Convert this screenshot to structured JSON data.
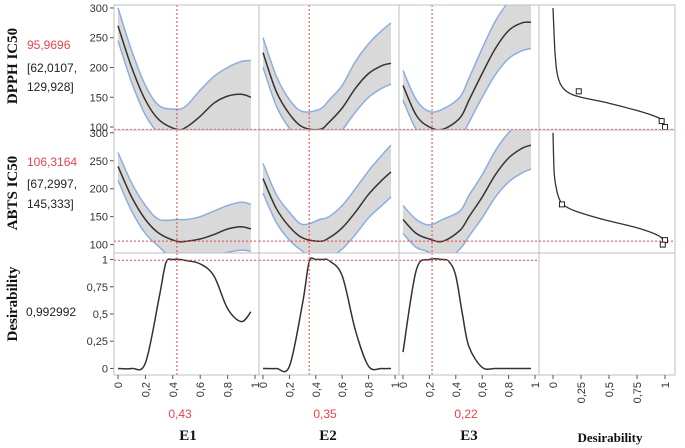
{
  "chart_data": {
    "type": "line",
    "title": "",
    "factors": [
      {
        "name": "E1",
        "current": "0,43",
        "value": 0.43
      },
      {
        "name": "E2",
        "current": "0,35",
        "value": 0.35
      },
      {
        "name": "E3",
        "current": "0,22",
        "value": 0.22
      }
    ],
    "x_ticks": [
      "0",
      "0,2",
      "0,4",
      "0,6",
      "0,8",
      "1"
    ],
    "desirability_axis": {
      "label": "Desirability",
      "ticks": [
        "0",
        "0,25",
        "0,5",
        "0,75",
        "1"
      ]
    },
    "responses": [
      {
        "name": "DPPH IC50",
        "predicted": "95,9696",
        "ci": [
          "[62,0107,",
          "129,928]"
        ],
        "predicted_value": 95.97,
        "ylim": [
          95,
          305
        ],
        "y_ticks": [
          100,
          150,
          200,
          250,
          300
        ],
        "x": [
          0,
          0.1,
          0.2,
          0.3,
          0.43,
          0.5,
          0.6,
          0.7,
          0.8,
          0.9,
          0.97
        ],
        "curves": {
          "E1": {
            "mean": [
              270,
              200,
              145,
              112,
              96,
              100,
              118,
              140,
              152,
              155,
              150
            ],
            "lower": [
              245,
              175,
              120,
              88,
              62,
              64,
              74,
              84,
              90,
              92,
              92
            ],
            "upper": [
              300,
              228,
              170,
              136,
              130,
              136,
              162,
              185,
              200,
              210,
              212
            ]
          },
          "E2": {
            "mean": [
              225,
              160,
              122,
              100,
              96,
              108,
              132,
              165,
              190,
              203,
              207
            ],
            "lower": [
              200,
              136,
              98,
              78,
              62,
              72,
              95,
              125,
              150,
              165,
              172
            ],
            "upper": [
              250,
              186,
              146,
              126,
              130,
              145,
              170,
              210,
              240,
              262,
              275
            ]
          },
          "E3": {
            "mean": [
              170,
              120,
              100,
              96,
              115,
              145,
              190,
              232,
              262,
              275,
              276
            ],
            "lower": [
              145,
              96,
              76,
              62,
              80,
              108,
              150,
              188,
              215,
              228,
              232
            ],
            "upper": [
              195,
              146,
              126,
              130,
              150,
              182,
              232,
              278,
              310,
              330,
              335
            ]
          }
        },
        "desirability_curve": {
          "y": [
            300,
            220,
            180,
            160,
            150,
            140,
            125,
            115,
            110,
            100
          ],
          "d": [
            0.0,
            0.02,
            0.05,
            0.12,
            0.25,
            0.5,
            0.8,
            0.95,
            0.98,
            1.0
          ]
        },
        "desirability_markers": [
          {
            "y": 160,
            "d": 0.23
          },
          {
            "y": 110,
            "d": 0.97
          },
          {
            "y": 100,
            "d": 1.0
          }
        ]
      },
      {
        "name": "ABTS IC50",
        "predicted": "106,3164",
        "ci": [
          "[67,2997,",
          "145,333]"
        ],
        "predicted_value": 106.32,
        "ylim": [
          85,
          305
        ],
        "y_ticks": [
          100,
          150,
          200,
          250,
          300
        ],
        "x": [
          0,
          0.1,
          0.2,
          0.3,
          0.43,
          0.5,
          0.6,
          0.7,
          0.8,
          0.9,
          0.97
        ],
        "curves": {
          "E1": {
            "mean": [
              240,
              185,
              145,
              120,
              106,
              106,
              110,
              118,
              128,
              132,
              128
            ],
            "lower": [
              215,
              160,
              120,
              96,
              67,
              68,
              70,
              78,
              86,
              90,
              88
            ],
            "upper": [
              265,
              210,
              170,
              145,
              145,
              145,
              150,
              160,
              170,
              176,
              172
            ]
          },
          "E2": {
            "mean": [
              218,
              165,
              132,
              112,
              106,
              112,
              130,
              158,
              190,
              215,
              230
            ],
            "lower": [
              192,
              140,
              108,
              88,
              67,
              76,
              92,
              118,
              148,
              170,
              185
            ],
            "upper": [
              245,
              190,
              158,
              136,
              145,
              150,
              170,
              200,
              232,
              260,
              278
            ]
          },
          "E3": {
            "mean": [
              145,
              120,
              110,
              106,
              125,
              150,
              185,
              225,
              255,
              272,
              278
            ],
            "lower": [
              120,
              95,
              86,
              67,
              92,
              115,
              148,
              185,
              212,
              228,
              235
            ],
            "upper": [
              170,
              145,
              135,
              145,
              160,
              188,
              225,
              268,
              300,
              320,
              330
            ]
          }
        },
        "desirability_curve": {
          "y": [
            300,
            230,
            200,
            180,
            170,
            160,
            145,
            130,
            115,
            100
          ],
          "d": [
            0.0,
            0.01,
            0.03,
            0.06,
            0.1,
            0.2,
            0.45,
            0.75,
            0.95,
            1.0
          ]
        },
        "desirability_markers": [
          {
            "y": 172,
            "d": 0.08
          },
          {
            "y": 108,
            "d": 1.0
          },
          {
            "y": 100,
            "d": 0.98
          }
        ]
      },
      {
        "name": "Desirability",
        "predicted": "0,992992",
        "predicted_value": 0.993,
        "ylim": [
          -0.06,
          1.06
        ],
        "y_ticks": [
          "0",
          "0,25",
          "0,5",
          "0,75",
          "1"
        ],
        "y_tick_values": [
          0,
          0.25,
          0.5,
          0.75,
          1
        ],
        "x": [
          0,
          0.1,
          0.2,
          0.3,
          0.35,
          0.4,
          0.45,
          0.5,
          0.6,
          0.7,
          0.8,
          0.9,
          0.97
        ],
        "curves": {
          "E1": {
            "mean": [
              0,
              0,
              0.05,
              0.65,
              0.97,
              1.0,
              1.0,
              0.99,
              0.96,
              0.85,
              0.55,
              0.43,
              0.52
            ]
          },
          "E2": {
            "mean": [
              0,
              0,
              0.02,
              0.6,
              0.98,
              1.0,
              1.0,
              0.99,
              0.85,
              0.35,
              0.02,
              0,
              0
            ]
          },
          "E3": {
            "mean": [
              0.15,
              0.9,
              1.0,
              1.0,
              0.98,
              0.85,
              0.5,
              0.2,
              0.01,
              0,
              0,
              0,
              0
            ]
          }
        }
      }
    ],
    "colors": {
      "band": "#d9d9d9",
      "band_edge": "#8aaee0",
      "mean": "#333333",
      "ref": "#e8434a",
      "frame": "#bfbfbf"
    }
  }
}
